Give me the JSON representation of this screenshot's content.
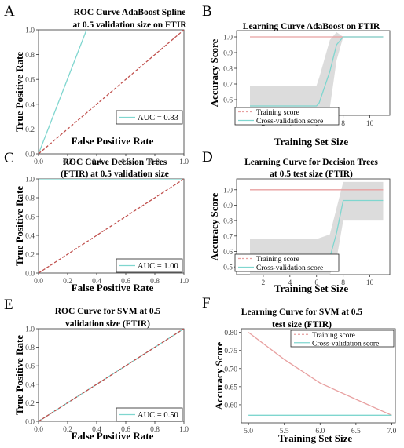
{
  "panels": {
    "A": {
      "letter": "A",
      "title_lines": [
        "ROC Curve AdaBoost Spline",
        "at 0.5 validation size on FTIR"
      ],
      "xlabel": "False Positive Rate",
      "ylabel": "True Positive Rate",
      "legend": [
        "AUC = 0.83"
      ]
    },
    "B": {
      "letter": "B",
      "title_lines": [
        "Learning Curve AdaBoost on FTIR"
      ],
      "xlabel": "Training Set Size",
      "ylabel": "Accuracy Score",
      "legend": [
        "Training score",
        "Cross-validation score"
      ]
    },
    "C": {
      "letter": "C",
      "title_lines": [
        "ROC Curve Decision Trees",
        "(FTIR)  at 0.5 validation size"
      ],
      "xlabel": "False Positive Rate",
      "ylabel": "True Positive Rate",
      "legend": [
        "AUC = 1.00"
      ]
    },
    "D": {
      "letter": "D",
      "title_lines": [
        "Learning Curve for Decision Trees",
        "at 0.5 test size (FTIR)"
      ],
      "xlabel": "Training Set Size",
      "ylabel": "Accuracy Score",
      "legend": [
        "Training score",
        "Cross-validation score"
      ]
    },
    "E": {
      "letter": "E",
      "title_lines": [
        "ROC Curve for SVM at 0.5",
        "validation size (FTIR)"
      ],
      "xlabel": "False Positive Rate",
      "ylabel": "True Positive Rate",
      "legend": [
        "AUC = 0.50"
      ]
    },
    "F": {
      "letter": "F",
      "title_lines": [
        "Learning Curve for SVM at 0.5",
        "test size (FTIR)"
      ],
      "xlabel": "Training Set Size",
      "ylabel": "Accuracy Score",
      "legend": [
        "Training score",
        "Cross-validation score"
      ]
    }
  },
  "colors": {
    "roc": "#7fd6cf",
    "diagonal": "#c0504d",
    "training": "#e8a0a0",
    "cv": "#7fd6cf",
    "band": "#d0d0d0",
    "axis": "#333333"
  },
  "chart_data": [
    {
      "panel": "A",
      "type": "line",
      "xlim": [
        0,
        1
      ],
      "ylim": [
        0,
        1
      ],
      "xticks": [
        0.0,
        0.2,
        0.4,
        0.6,
        0.8,
        1.0
      ],
      "yticks": [
        0.0,
        0.2,
        0.4,
        0.6,
        0.8,
        1.0
      ],
      "series": [
        {
          "name": "AUC = 0.83",
          "x": [
            0.0,
            0.33
          ],
          "y": [
            0.0,
            1.0
          ]
        },
        {
          "x": [
            0,
            1
          ],
          "y": [
            0,
            1
          ],
          "dashed": true
        }
      ]
    },
    {
      "panel": "B",
      "type": "line",
      "xlim": [
        0,
        11.5
      ],
      "ylim": [
        0.5,
        1.04
      ],
      "xticks": [
        2,
        4,
        6,
        8,
        10
      ],
      "yticks": [
        0.6,
        0.7,
        0.8,
        0.9,
        1.0
      ],
      "series": [
        {
          "name": "Training score",
          "x": [
            1,
            2,
            3,
            4,
            5,
            6,
            7,
            8,
            9,
            10,
            11
          ],
          "y": [
            1.0,
            1.0,
            1.0,
            1.0,
            1.0,
            1.0,
            1.0,
            1.0,
            1.0,
            1.0,
            1.0
          ]
        },
        {
          "name": "Cross-validation score",
          "x": [
            1,
            2,
            3,
            4,
            5,
            6,
            6.2,
            7,
            7.5,
            8,
            9,
            10,
            11
          ],
          "y": [
            0.56,
            0.56,
            0.56,
            0.56,
            0.56,
            0.56,
            0.58,
            0.78,
            0.95,
            1.0,
            1.0,
            1.0,
            1.0
          ],
          "band_upper": [
            0.69,
            0.69,
            0.69,
            0.69,
            0.69,
            0.69,
            0.74,
            0.98,
            1.03,
            1.0,
            1.0,
            1.0,
            1.0
          ],
          "band_lower": [
            0.5,
            0.5,
            0.5,
            0.5,
            0.5,
            0.5,
            0.5,
            0.55,
            0.85,
            1.0,
            1.0,
            1.0,
            1.0
          ]
        }
      ]
    },
    {
      "panel": "C",
      "type": "line",
      "xlim": [
        0,
        1
      ],
      "ylim": [
        0,
        1
      ],
      "xticks": [
        0.0,
        0.2,
        0.4,
        0.6,
        0.8,
        1.0
      ],
      "yticks": [
        0.0,
        0.2,
        0.4,
        0.6,
        0.8,
        1.0
      ],
      "series": [
        {
          "name": "AUC = 1.00",
          "x": [
            0,
            0,
            1
          ],
          "y": [
            0,
            1,
            1
          ]
        },
        {
          "x": [
            0,
            1
          ],
          "y": [
            0,
            1
          ],
          "dashed": true
        }
      ]
    },
    {
      "panel": "D",
      "type": "line",
      "xlim": [
        0,
        11.5
      ],
      "ylim": [
        0.45,
        1.07
      ],
      "xticks": [
        2,
        4,
        6,
        8,
        10
      ],
      "yticks": [
        0.5,
        0.6,
        0.7,
        0.8,
        0.9,
        1.0
      ],
      "series": [
        {
          "name": "Training score",
          "x": [
            1,
            2,
            3,
            4,
            5,
            6,
            7,
            8,
            9,
            10,
            11
          ],
          "y": [
            1.0,
            1.0,
            1.0,
            1.0,
            1.0,
            1.0,
            1.0,
            1.0,
            1.0,
            1.0,
            1.0
          ]
        },
        {
          "name": "Cross-validation score",
          "x": [
            1,
            2,
            3,
            4,
            5,
            6,
            7,
            7.5,
            8,
            9,
            10,
            11
          ],
          "y": [
            0.56,
            0.56,
            0.56,
            0.56,
            0.56,
            0.56,
            0.56,
            0.72,
            0.93,
            0.93,
            0.93,
            0.93
          ],
          "band_upper": [
            0.68,
            0.68,
            0.68,
            0.68,
            0.68,
            0.68,
            0.71,
            0.88,
            1.05,
            1.05,
            1.05,
            1.05
          ],
          "band_lower": [
            0.45,
            0.45,
            0.45,
            0.45,
            0.45,
            0.45,
            0.45,
            0.55,
            0.8,
            0.8,
            0.8,
            0.8
          ]
        }
      ]
    },
    {
      "panel": "E",
      "type": "line",
      "xlim": [
        0,
        1
      ],
      "ylim": [
        0,
        1
      ],
      "xticks": [
        0.0,
        0.2,
        0.4,
        0.6,
        0.8,
        1.0
      ],
      "yticks": [
        0.0,
        0.2,
        0.4,
        0.6,
        0.8,
        1.0
      ],
      "series": [
        {
          "name": "AUC = 0.50",
          "x": [
            0,
            1
          ],
          "y": [
            0,
            1
          ]
        },
        {
          "x": [
            0,
            1
          ],
          "y": [
            0,
            1
          ],
          "dashed": true
        }
      ]
    },
    {
      "panel": "F",
      "type": "line",
      "xlim": [
        4.9,
        7.05
      ],
      "ylim": [
        0.55,
        0.81
      ],
      "xticks": [
        5.0,
        5.5,
        6.0,
        6.5,
        7.0
      ],
      "yticks": [
        0.6,
        0.65,
        0.7,
        0.75,
        0.8
      ],
      "series": [
        {
          "name": "Training score",
          "x": [
            5.0,
            5.5,
            6.0,
            6.5,
            7.0
          ],
          "y": [
            0.8,
            0.725,
            0.66,
            0.615,
            0.571
          ]
        },
        {
          "name": "Cross-validation score",
          "x": [
            5.0,
            5.5,
            6.0,
            6.5,
            7.0
          ],
          "y": [
            0.571,
            0.571,
            0.571,
            0.571,
            0.571
          ]
        }
      ]
    }
  ]
}
